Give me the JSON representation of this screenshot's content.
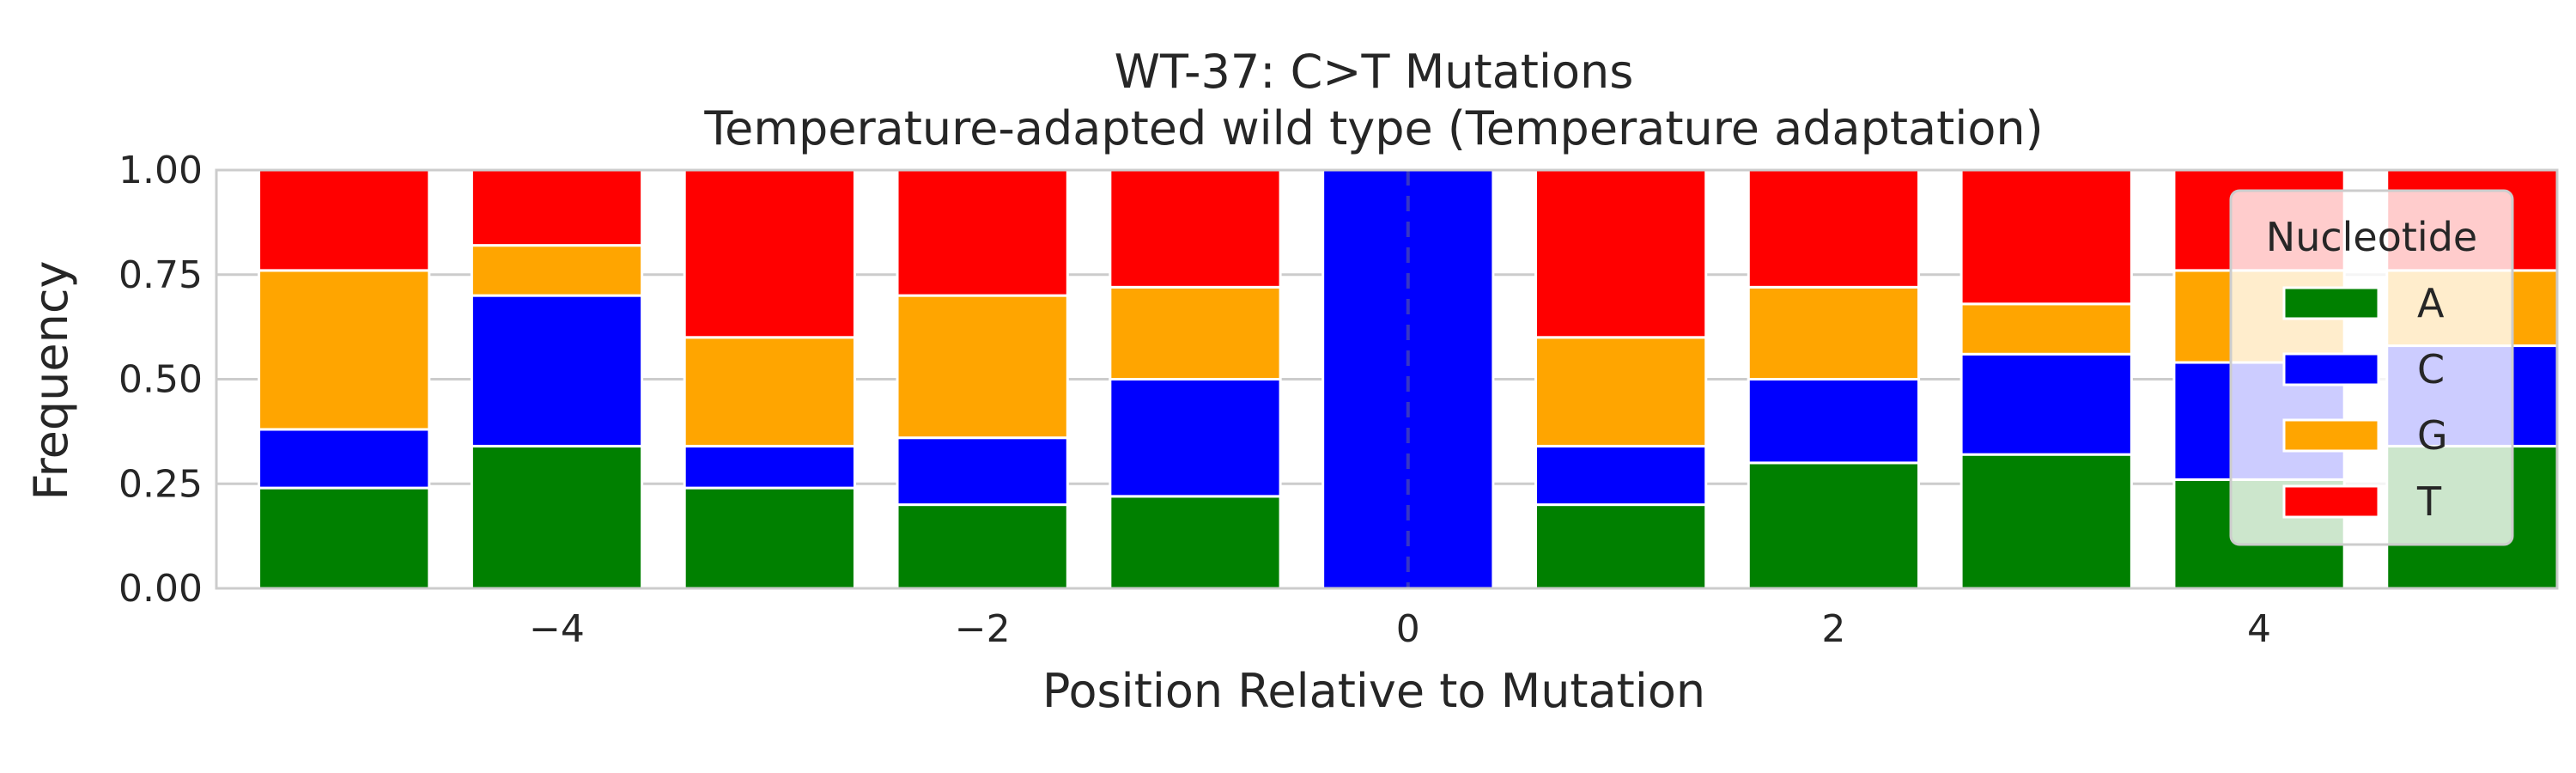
{
  "chart_data": {
    "type": "bar",
    "stacked": true,
    "title": "WT-37: C>T Mutations",
    "subtitle": "Temperature-adapted wild type (Temperature adaptation)",
    "xlabel": "Position Relative to Mutation",
    "ylabel": "Frequency",
    "xlim": [
      -5.6,
      5.4
    ],
    "ylim": [
      0,
      1
    ],
    "x_ticks": [
      -4,
      -2,
      0,
      2,
      4
    ],
    "x_tick_labels": [
      "−4",
      "−2",
      "0",
      "2",
      "4"
    ],
    "y_ticks": [
      0,
      0.25,
      0.5,
      0.75,
      1.0
    ],
    "y_tick_labels": [
      "0.00",
      "0.25",
      "0.50",
      "0.75",
      "1.00"
    ],
    "x": [
      -5,
      -4,
      -3,
      -2,
      -1,
      0,
      1,
      2,
      3,
      4,
      5
    ],
    "series": [
      {
        "name": "A",
        "color": "#008000",
        "values": [
          0.24,
          0.34,
          0.24,
          0.2,
          0.22,
          0.0,
          0.2,
          0.3,
          0.32,
          0.26,
          0.34
        ]
      },
      {
        "name": "C",
        "color": "#0000ff",
        "values": [
          0.14,
          0.36,
          0.1,
          0.16,
          0.28,
          1.0,
          0.14,
          0.2,
          0.24,
          0.28,
          0.24
        ]
      },
      {
        "name": "G",
        "color": "#ffa500",
        "values": [
          0.38,
          0.12,
          0.26,
          0.34,
          0.22,
          0.0,
          0.26,
          0.22,
          0.12,
          0.22,
          0.18
        ]
      },
      {
        "name": "T",
        "color": "#ff0000",
        "values": [
          0.24,
          0.18,
          0.4,
          0.3,
          0.28,
          0.0,
          0.4,
          0.28,
          0.32,
          0.24,
          0.24
        ]
      }
    ],
    "reference_line": {
      "x": 0,
      "style": "dashed"
    },
    "grid": "y",
    "legend": {
      "title": "Nucleotide",
      "placement": "upper-right"
    }
  }
}
